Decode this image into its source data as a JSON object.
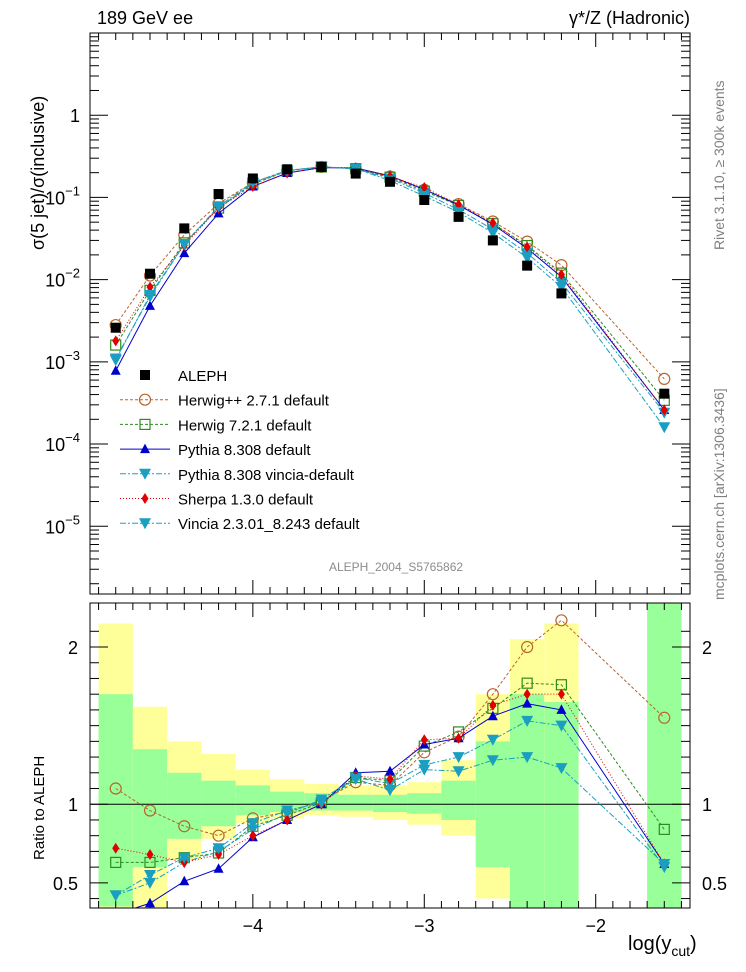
{
  "header": {
    "left": "189 GeV ee",
    "right": "γ*/Z (Hadronic)"
  },
  "side_labels": {
    "rivet": "Rivet 3.1.10, ≥ 300k events",
    "mcplots": "mcplots.cern.ch [arXiv:1306.3436]"
  },
  "analysis_label": "ALEPH_2004_S5765862",
  "colors": {
    "ALEPH": "#000000",
    "herwigpp": "#b8652f",
    "herwig7": "#2e8b20",
    "pythia": "#0000cc",
    "pythia_vincia": "#1a9fc0",
    "sherpa": "#e00000",
    "vincia": "#1a9fc0",
    "band_yellow": "#ffff99",
    "band_green": "#99ff99"
  },
  "chart_data": [
    {
      "name": "main",
      "type": "scatter",
      "scale": "log",
      "ylabel": "σ(5 jet)/σ(inclusive)",
      "xlim": [
        -4.95,
        -1.45
      ],
      "ylim": [
        1.5e-06,
        10
      ],
      "y_ticks": [
        {
          "v": 1,
          "label": "1",
          "exp": ""
        },
        {
          "v": 0.1,
          "label": "10",
          "exp": "−1"
        },
        {
          "v": 0.01,
          "label": "10",
          "exp": "−2"
        },
        {
          "v": 0.001,
          "label": "10",
          "exp": "−3"
        },
        {
          "v": 0.0001,
          "label": "10",
          "exp": "−4"
        },
        {
          "v": 1e-05,
          "label": "10",
          "exp": "−5"
        }
      ],
      "x": [
        -4.8,
        -4.6,
        -4.4,
        -4.2,
        -4.0,
        -3.8,
        -3.6,
        -3.4,
        -3.2,
        -3.0,
        -2.8,
        -2.6,
        -2.4,
        -2.2,
        -1.6
      ],
      "series": [
        {
          "key": "ALEPH",
          "name": "ALEPH",
          "marker": "square-filled",
          "dash": "none",
          "values": [
            0.0026,
            0.0118,
            0.042,
            0.11,
            0.17,
            0.22,
            0.235,
            0.195,
            0.155,
            0.093,
            0.058,
            0.03,
            0.0148,
            0.0068,
            0.00041
          ]
        },
        {
          "key": "herwigpp",
          "name": "Herwig++ 2.7.1 default",
          "marker": "circle-open",
          "dash": "3,2",
          "values": [
            0.0028,
            0.0112,
            0.035,
            0.084,
            0.152,
            0.213,
            0.235,
            0.222,
            0.18,
            0.124,
            0.083,
            0.051,
            0.029,
            0.015,
            0.00062
          ]
        },
        {
          "key": "herwig7",
          "name": "Herwig 7.2.1 default",
          "marker": "square-open",
          "dash": "3,2",
          "values": [
            0.0016,
            0.0074,
            0.028,
            0.074,
            0.145,
            0.21,
            0.235,
            0.224,
            0.176,
            0.119,
            0.08,
            0.048,
            0.026,
            0.012,
            0.00034
          ]
        },
        {
          "key": "pythia",
          "name": "Pythia 8.308 default",
          "marker": "triangle-up",
          "dash": "none",
          "values": [
            0.00078,
            0.0048,
            0.021,
            0.064,
            0.136,
            0.198,
            0.23,
            0.228,
            0.183,
            0.125,
            0.081,
            0.047,
            0.024,
            0.0108,
            0.00026
          ]
        },
        {
          "key": "pythia_vincia",
          "name": "Pythia 8.308 vincia-default",
          "marker": "triangle-down",
          "dash": "6,2,2,2",
          "values": [
            0.0011,
            0.0062,
            0.027,
            0.075,
            0.148,
            0.211,
            0.236,
            0.222,
            0.17,
            0.113,
            0.071,
            0.041,
            0.021,
            0.0092,
            0.00024
          ]
        },
        {
          "key": "sherpa",
          "name": "Sherpa 1.3.0 default",
          "marker": "diamond",
          "dash": "1,2",
          "values": [
            0.0018,
            0.0081,
            0.026,
            0.075,
            0.136,
            0.198,
            0.233,
            0.23,
            0.18,
            0.132,
            0.082,
            0.049,
            0.025,
            0.0115,
            0.00026
          ]
        },
        {
          "key": "vincia",
          "name": "Vincia 2.3.01_8.243 default",
          "marker": "triangle-down",
          "dash": "6,2,2,2",
          "values": [
            0.00105,
            0.0065,
            0.027,
            0.078,
            0.152,
            0.213,
            0.235,
            0.224,
            0.16,
            0.104,
            0.066,
            0.037,
            0.0185,
            0.0081,
            0.00016
          ]
        }
      ]
    },
    {
      "name": "ratio",
      "type": "scatter",
      "ylabel": "Ratio to ALEPH",
      "xlabel": "log(y",
      "xlabel_sub": "cut",
      "xlabel_close": ")",
      "xlim": [
        -4.95,
        -1.45
      ],
      "ylim": [
        0.34,
        2.28
      ],
      "x_ticks": [
        {
          "v": -4,
          "label": "−4"
        },
        {
          "v": -3,
          "label": "−3"
        },
        {
          "v": -2,
          "label": "−2"
        }
      ],
      "y_ticks": [
        {
          "v": 0.5,
          "label": "0.5"
        },
        {
          "v": 1,
          "label": "1"
        },
        {
          "v": 2,
          "label": "2"
        }
      ],
      "bands": [
        {
          "x0": -4.9,
          "x1": -4.7,
          "y_lo": 0.0,
          "y_hi": 2.15,
          "g_lo": 0.35,
          "g_hi": 1.7
        },
        {
          "x0": -4.7,
          "x1": -4.5,
          "y_lo": 0.3,
          "y_hi": 1.62,
          "g_lo": 0.6,
          "g_hi": 1.35
        },
        {
          "x0": -4.5,
          "x1": -4.3,
          "y_lo": 0.65,
          "y_hi": 1.4,
          "g_lo": 0.78,
          "g_hi": 1.2
        },
        {
          "x0": -4.3,
          "x1": -4.1,
          "y_lo": 0.78,
          "y_hi": 1.32,
          "g_lo": 0.86,
          "g_hi": 1.15
        },
        {
          "x0": -4.1,
          "x1": -3.9,
          "y_lo": 0.88,
          "y_hi": 1.22,
          "g_lo": 0.93,
          "g_hi": 1.12
        },
        {
          "x0": -3.9,
          "x1": -3.7,
          "y_lo": 0.91,
          "y_hi": 1.16,
          "g_lo": 0.95,
          "g_hi": 1.08
        },
        {
          "x0": -3.7,
          "x1": -3.5,
          "y_lo": 0.93,
          "y_hi": 1.13,
          "g_lo": 0.96,
          "g_hi": 1.07
        },
        {
          "x0": -3.5,
          "x1": -3.3,
          "y_lo": 0.92,
          "y_hi": 1.12,
          "g_lo": 0.96,
          "g_hi": 1.06
        },
        {
          "x0": -3.3,
          "x1": -3.1,
          "y_lo": 0.9,
          "y_hi": 1.12,
          "g_lo": 0.95,
          "g_hi": 1.06
        },
        {
          "x0": -3.1,
          "x1": -2.9,
          "y_lo": 0.87,
          "y_hi": 1.14,
          "g_lo": 0.94,
          "g_hi": 1.07
        },
        {
          "x0": -2.9,
          "x1": -2.7,
          "y_lo": 0.8,
          "y_hi": 1.28,
          "g_lo": 0.9,
          "g_hi": 1.15
        },
        {
          "x0": -2.7,
          "x1": -2.5,
          "y_lo": 0.4,
          "y_hi": 1.7,
          "g_lo": 0.6,
          "g_hi": 1.4
        },
        {
          "x0": -2.5,
          "x1": -2.3,
          "y_lo": 0.45,
          "y_hi": 2.05,
          "g_lo": 0.3,
          "g_hi": 1.7
        },
        {
          "x0": -2.3,
          "x1": -2.1,
          "y_lo": 0.2,
          "y_hi": 2.15,
          "g_lo": 0.3,
          "g_hi": 1.65
        },
        {
          "x0": -1.7,
          "x1": -1.5,
          "y_lo": 0.0,
          "y_hi": 3.0,
          "g_lo": 0.0,
          "g_hi": 3.0
        }
      ],
      "x": [
        -4.8,
        -4.6,
        -4.4,
        -4.2,
        -4.0,
        -3.8,
        -3.6,
        -3.4,
        -3.2,
        -3.0,
        -2.8,
        -2.6,
        -2.4,
        -2.2,
        -1.6
      ],
      "series": [
        {
          "key": "herwigpp",
          "marker": "circle-open",
          "dash": "3,2",
          "values": [
            1.1,
            0.96,
            0.86,
            0.8,
            0.91,
            0.95,
            1.02,
            1.14,
            1.12,
            1.33,
            1.43,
            1.7,
            2.0,
            2.17,
            1.55
          ]
        },
        {
          "key": "herwig7",
          "marker": "square-open",
          "dash": "3,2",
          "values": [
            0.63,
            0.63,
            0.66,
            0.69,
            0.86,
            0.93,
            1.01,
            1.17,
            1.15,
            1.37,
            1.46,
            1.61,
            1.77,
            1.76,
            0.84
          ]
        },
        {
          "key": "pythia",
          "marker": "triangle-up",
          "dash": "none",
          "values": [
            0.3,
            0.37,
            0.51,
            0.59,
            0.79,
            0.9,
            1.0,
            1.2,
            1.21,
            1.38,
            1.42,
            1.56,
            1.64,
            1.6,
            0.62
          ]
        },
        {
          "key": "pythia_vincia",
          "marker": "triangle-down",
          "dash": "6,2,2,2",
          "values": [
            0.42,
            0.5,
            0.63,
            0.7,
            0.84,
            0.94,
            1.03,
            1.17,
            1.13,
            1.25,
            1.3,
            1.41,
            1.53,
            1.5,
            0.6
          ]
        },
        {
          "key": "sherpa",
          "marker": "diamond",
          "dash": "1,2",
          "values": [
            0.72,
            0.68,
            0.63,
            0.68,
            0.8,
            0.9,
            1.0,
            1.18,
            1.16,
            1.41,
            1.42,
            1.63,
            1.7,
            1.7,
            0.62
          ]
        },
        {
          "key": "vincia",
          "marker": "triangle-down",
          "dash": "6,2,2,2",
          "values": [
            0.42,
            0.55,
            0.66,
            0.72,
            0.88,
            0.96,
            1.01,
            1.16,
            1.09,
            1.22,
            1.21,
            1.28,
            1.3,
            1.23,
            0.62
          ]
        }
      ]
    }
  ]
}
